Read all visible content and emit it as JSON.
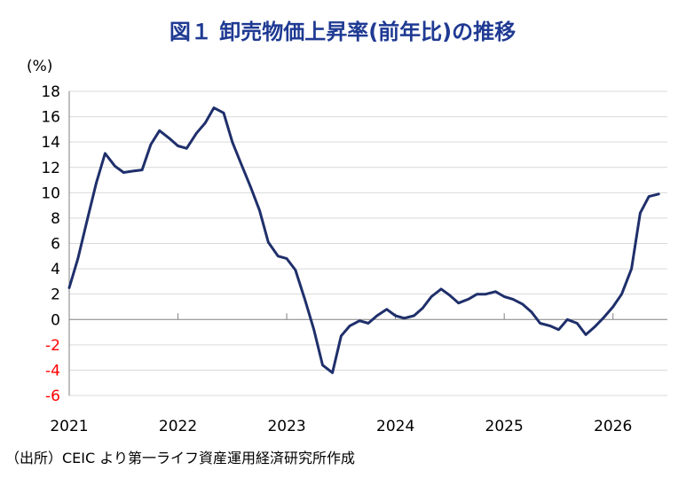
{
  "chart_data": {
    "type": "line",
    "title": "図１ 卸売物価上昇率(前年比)の推移",
    "unit_label": "(%)",
    "source": "（出所）CEIC より第一ライフ資産運用経済研究所作成",
    "ylim": [
      -6,
      18
    ],
    "yticks": [
      18,
      16,
      14,
      12,
      10,
      8,
      6,
      4,
      2,
      0,
      -2,
      -4,
      -6
    ],
    "xlim": [
      2021.0,
      2026.5
    ],
    "xticks": [
      "2021",
      "2022",
      "2023",
      "2024",
      "2025",
      "2026"
    ],
    "grid": true,
    "line_color": "#1f2f6b",
    "negative_tick_color": "#ff0000",
    "series": [
      {
        "x": [
          2021.0,
          2021.08,
          2021.17,
          2021.25,
          2021.33,
          2021.42,
          2021.5,
          2021.58,
          2021.67,
          2021.75,
          2021.83,
          2021.92,
          2022.0,
          2022.08,
          2022.17,
          2022.25,
          2022.33,
          2022.42,
          2022.5,
          2022.58,
          2022.67,
          2022.75,
          2022.83,
          2022.92,
          2023.0,
          2023.08,
          2023.17,
          2023.25,
          2023.33,
          2023.42,
          2023.5,
          2023.58,
          2023.67,
          2023.75,
          2023.83,
          2023.92,
          2024.0,
          2024.08,
          2024.17,
          2024.25,
          2024.33,
          2024.42,
          2024.5,
          2024.58,
          2024.67,
          2024.75,
          2024.83,
          2024.92,
          2025.0,
          2025.08,
          2025.17,
          2025.25,
          2025.33,
          2025.42,
          2025.5,
          2025.58,
          2025.67,
          2025.75,
          2025.83,
          2025.92,
          2026.0,
          2026.08,
          2026.17,
          2026.25,
          2026.33,
          2026.42
        ],
        "values": [
          2.5,
          4.8,
          8.0,
          10.8,
          13.1,
          12.1,
          11.6,
          11.7,
          11.8,
          13.8,
          14.9,
          14.3,
          13.7,
          13.5,
          14.7,
          15.5,
          16.7,
          16.3,
          14.0,
          12.3,
          10.4,
          8.6,
          6.1,
          5.0,
          4.8,
          3.9,
          1.5,
          -0.8,
          -3.6,
          -4.2,
          -1.3,
          -0.5,
          -0.1,
          -0.3,
          0.3,
          0.8,
          0.3,
          0.1,
          0.3,
          0.9,
          1.8,
          2.4,
          1.9,
          1.3,
          1.6,
          2.0,
          2.0,
          2.2,
          1.8,
          1.6,
          1.2,
          0.6,
          -0.3,
          -0.5,
          -0.8,
          0.0,
          -0.3,
          -1.2,
          -0.6,
          0.2,
          1.0,
          2.0,
          4.0,
          8.4,
          9.7,
          9.9
        ]
      }
    ]
  }
}
